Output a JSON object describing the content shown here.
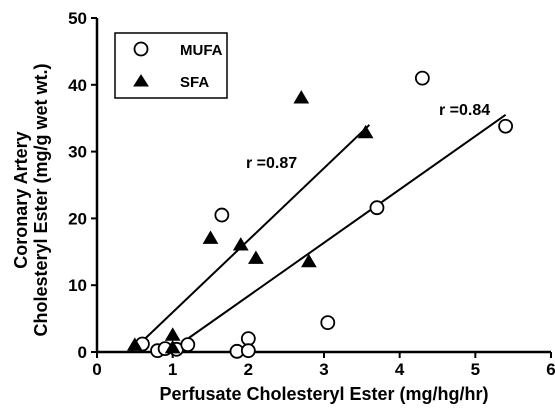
{
  "chart_data": {
    "type": "scatter",
    "title": "",
    "xlabel": "Perfusate Cholesteryl Ester (mg/hg/hr)",
    "ylabel_lines": [
      "Coronary Artery",
      "Cholesteryl Ester (mg/g wet wt.)"
    ],
    "xlim": [
      0,
      6
    ],
    "ylim": [
      0,
      50
    ],
    "xticks": [
      0,
      1,
      2,
      3,
      4,
      5,
      6
    ],
    "yticks": [
      0,
      10,
      20,
      30,
      40,
      50
    ],
    "x_tick_labels": [
      "0",
      "1",
      "2",
      "3",
      "4",
      "5",
      "6"
    ],
    "y_tick_labels": [
      "0",
      "10",
      "20",
      "30",
      "40",
      "50"
    ],
    "grid": false,
    "legend_position": "top-left",
    "series": [
      {
        "name": "MUFA",
        "marker": "open-circle",
        "points": [
          [
            0.6,
            1.2
          ],
          [
            0.8,
            0.2
          ],
          [
            0.9,
            0.5
          ],
          [
            1.05,
            0.4
          ],
          [
            1.2,
            1.1
          ],
          [
            1.65,
            20.5
          ],
          [
            1.85,
            0.1
          ],
          [
            2.0,
            2.0
          ],
          [
            2.0,
            0.2
          ],
          [
            3.05,
            4.4
          ],
          [
            3.7,
            21.6
          ],
          [
            4.3,
            41.0
          ],
          [
            5.4,
            33.8
          ]
        ],
        "fit": {
          "x": [
            0.95,
            5.4
          ],
          "y": [
            0.0,
            35.5
          ]
        }
      },
      {
        "name": "SFA",
        "marker": "filled-triangle",
        "points": [
          [
            0.5,
            1.0
          ],
          [
            1.0,
            2.5
          ],
          [
            1.0,
            0.6
          ],
          [
            1.5,
            17.0
          ],
          [
            1.9,
            16.0
          ],
          [
            2.1,
            14.0
          ],
          [
            2.7,
            38.0
          ],
          [
            2.8,
            13.5
          ],
          [
            3.55,
            32.8
          ]
        ],
        "fit": {
          "x": [
            0.45,
            3.6
          ],
          "y": [
            0.0,
            34.0
          ]
        }
      }
    ],
    "annotations": [
      {
        "text": "r =0.87",
        "x": 1.95,
        "y": 28.5
      },
      {
        "text": "r =0.84",
        "x": 4.38,
        "y": 36.0
      }
    ]
  }
}
